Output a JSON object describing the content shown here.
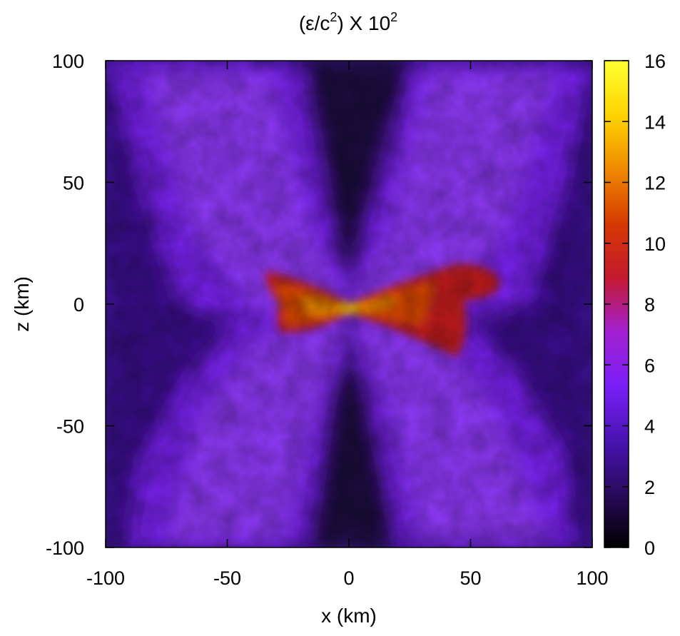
{
  "chart_data": {
    "type": "heatmap",
    "title": {
      "prefix": "(ε/c",
      "sup1": "2",
      "mid": ") X 10",
      "sup2": "2"
    },
    "xlabel": "x (km)",
    "ylabel": "z (km)",
    "xlim": [
      -100,
      100
    ],
    "ylim": [
      -100,
      100
    ],
    "xticks": [
      -100,
      -50,
      0,
      50,
      100
    ],
    "yticks": [
      -100,
      -50,
      0,
      50,
      100
    ],
    "grid": false,
    "colorbar": {
      "range": [
        0,
        16
      ],
      "ticks": [
        0,
        2,
        4,
        6,
        8,
        10,
        12,
        14,
        16
      ],
      "colormap": [
        "#000000",
        "#2a0a5c",
        "#4a14b4",
        "#7a1ff8",
        "#a320d0",
        "#c41a2e",
        "#d63a00",
        "#ef8a00",
        "#ffd400",
        "#ffff33"
      ]
    },
    "field_description_points": [
      {
        "x": 0,
        "z": 0,
        "value": 15
      },
      {
        "x": -20,
        "z": 5,
        "value": 12
      },
      {
        "x": 20,
        "z": 0,
        "value": 12
      },
      {
        "x": -25,
        "z": 10,
        "value": 9
      },
      {
        "x": 30,
        "z": -15,
        "value": 9
      },
      {
        "x": 55,
        "z": 10,
        "value": 9
      },
      {
        "x": -60,
        "z": 60,
        "value": 4
      },
      {
        "x": 60,
        "z": -60,
        "value": 4
      },
      {
        "x": 0,
        "z": 70,
        "value": 1
      },
      {
        "x": 0,
        "z": -70,
        "value": 1
      },
      {
        "x": -85,
        "z": 0,
        "value": 2
      },
      {
        "x": 85,
        "z": 0,
        "value": 2
      }
    ]
  }
}
